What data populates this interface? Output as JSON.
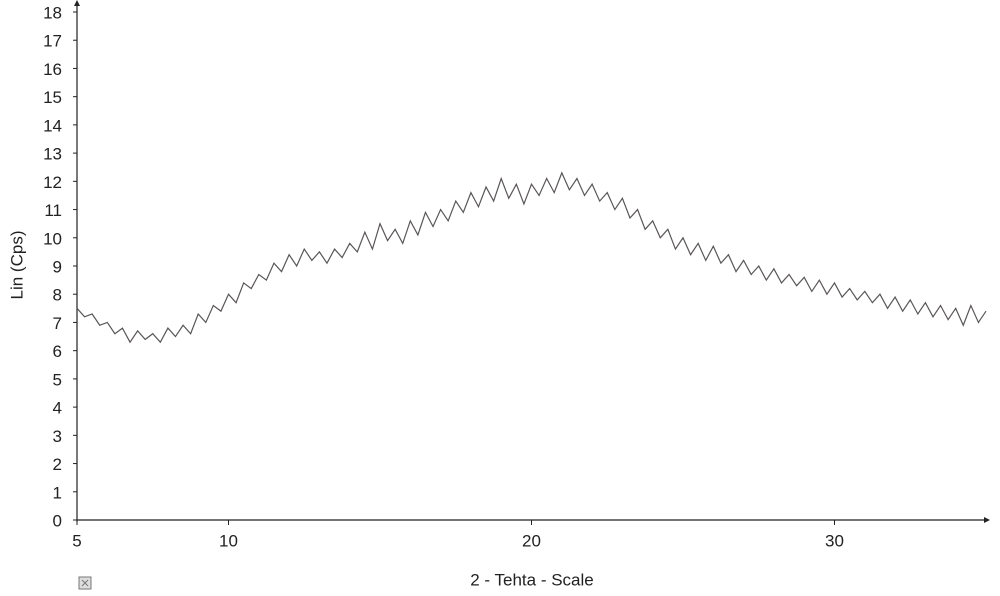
{
  "chart_data": {
    "type": "line",
    "xlabel": "2 - Tehta - Scale",
    "ylabel": "Lin (Cps)",
    "xlim": [
      5,
      35
    ],
    "xticks": [
      5,
      10,
      20,
      30
    ],
    "ylim": [
      0,
      18
    ],
    "yticks": [
      0,
      1,
      2,
      3,
      4,
      5,
      6,
      7,
      8,
      9,
      10,
      11,
      12,
      13,
      14,
      15,
      16,
      17,
      18
    ],
    "grid": false,
    "x": [
      5,
      5.25,
      5.5,
      5.75,
      6,
      6.25,
      6.5,
      6.75,
      7,
      7.25,
      7.5,
      7.75,
      8,
      8.25,
      8.5,
      8.75,
      9,
      9.25,
      9.5,
      9.75,
      10,
      10.25,
      10.5,
      10.75,
      11,
      11.25,
      11.5,
      11.75,
      12,
      12.25,
      12.5,
      12.75,
      13,
      13.25,
      13.5,
      13.75,
      14,
      14.25,
      14.5,
      14.75,
      15,
      15.25,
      15.5,
      15.75,
      16,
      16.25,
      16.5,
      16.75,
      17,
      17.25,
      17.5,
      17.75,
      18,
      18.25,
      18.5,
      18.75,
      19,
      19.25,
      19.5,
      19.75,
      20,
      20.25,
      20.5,
      20.75,
      21,
      21.25,
      21.5,
      21.75,
      22,
      22.25,
      22.5,
      22.75,
      23,
      23.25,
      23.5,
      23.75,
      24,
      24.25,
      24.5,
      24.75,
      25,
      25.25,
      25.5,
      25.75,
      26,
      26.25,
      26.5,
      26.75,
      27,
      27.25,
      27.5,
      27.75,
      28,
      28.25,
      28.5,
      28.75,
      29,
      29.25,
      29.5,
      29.75,
      30,
      30.25,
      30.5,
      30.75,
      31,
      31.25,
      31.5,
      31.75,
      32,
      32.25,
      32.5,
      32.75,
      33,
      33.25,
      33.5,
      33.75,
      34,
      34.25,
      34.5,
      34.75,
      35
    ],
    "series": [
      {
        "color": "#5a5658",
        "values": [
          7.5,
          7.2,
          7.3,
          6.9,
          7.0,
          6.6,
          6.8,
          6.3,
          6.7,
          6.4,
          6.6,
          6.3,
          6.8,
          6.5,
          6.9,
          6.6,
          7.3,
          7.0,
          7.6,
          7.4,
          8.0,
          7.7,
          8.4,
          8.2,
          8.7,
          8.5,
          9.1,
          8.8,
          9.4,
          9.0,
          9.6,
          9.2,
          9.5,
          9.1,
          9.6,
          9.3,
          9.8,
          9.5,
          10.2,
          9.6,
          10.5,
          9.9,
          10.3,
          9.8,
          10.6,
          10.1,
          10.9,
          10.4,
          11.0,
          10.6,
          11.3,
          10.9,
          11.6,
          11.1,
          11.8,
          11.3,
          12.1,
          11.4,
          11.9,
          11.2,
          11.9,
          11.5,
          12.1,
          11.6,
          12.3,
          11.7,
          12.1,
          11.5,
          11.9,
          11.3,
          11.6,
          11.0,
          11.4,
          10.7,
          11.0,
          10.3,
          10.6,
          10.0,
          10.3,
          9.6,
          10.0,
          9.4,
          9.8,
          9.2,
          9.7,
          9.1,
          9.4,
          8.8,
          9.2,
          8.7,
          9.0,
          8.5,
          8.9,
          8.4,
          8.7,
          8.3,
          8.6,
          8.1,
          8.5,
          8.0,
          8.4,
          7.9,
          8.2,
          7.8,
          8.1,
          7.7,
          8.0,
          7.5,
          7.9,
          7.4,
          7.8,
          7.3,
          7.7,
          7.2,
          7.6,
          7.1,
          7.5,
          6.9,
          7.6,
          7.0,
          7.4
        ]
      }
    ]
  }
}
